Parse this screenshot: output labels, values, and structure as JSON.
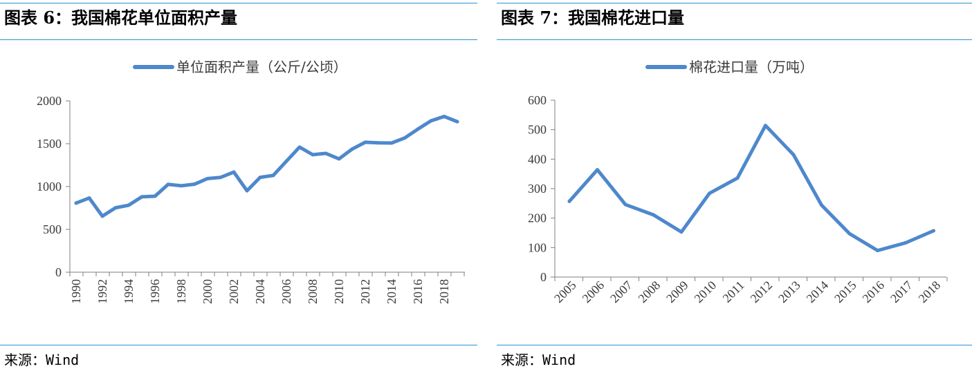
{
  "left_panel": {
    "title": "图表 6：我国棉花单位面积产量",
    "source": "来源：Wind"
  },
  "right_panel": {
    "title": "图表 7：我国棉花进口量",
    "source": "来源：Wind"
  },
  "colors": {
    "line": "#4e88cc",
    "rule": "#2b8fd0",
    "axis": "#7f7f7f"
  },
  "chart_data": [
    {
      "type": "line",
      "series": [
        {
          "name": "单位面积产量（公斤/公顷）",
          "values": [
            807,
            866,
            654,
            752,
            782,
            880,
            887,
            1025,
            1009,
            1027,
            1093,
            1107,
            1169,
            951,
            1107,
            1130,
            1296,
            1460,
            1372,
            1387,
            1323,
            1437,
            1517,
            1510,
            1508,
            1567,
            1670,
            1767,
            1818,
            1757
          ]
        }
      ],
      "categories": [
        "1990",
        "1991",
        "1992",
        "1993",
        "1994",
        "1995",
        "1996",
        "1997",
        "1998",
        "1999",
        "2000",
        "2001",
        "2002",
        "2003",
        "2004",
        "2005",
        "2006",
        "2007",
        "2008",
        "2009",
        "2010",
        "2011",
        "2012",
        "2013",
        "2014",
        "2015",
        "2016",
        "2017",
        "2018",
        "2019"
      ],
      "x_tick_labels": [
        "1990",
        "1992",
        "1994",
        "1996",
        "1998",
        "2000",
        "2002",
        "2004",
        "2006",
        "2008",
        "2010",
        "2012",
        "2014",
        "2016",
        "2018"
      ],
      "ylim": [
        0,
        2000
      ],
      "y_ticks": [
        0,
        500,
        1000,
        1500,
        2000
      ],
      "legend": "top-center",
      "grid": false
    },
    {
      "type": "line",
      "series": [
        {
          "name": "棉花进口量（万吨）",
          "values": [
            257,
            364,
            246,
            211,
            153,
            284,
            336,
            514,
            415,
            244,
            147,
            90,
            116,
            157
          ]
        }
      ],
      "categories": [
        "2005",
        "2006",
        "2007",
        "2008",
        "2009",
        "2010",
        "2011",
        "2012",
        "2013",
        "2014",
        "2015",
        "2016",
        "2017",
        "2018"
      ],
      "ylim": [
        0,
        600
      ],
      "y_ticks": [
        0,
        100,
        200,
        300,
        400,
        500,
        600
      ],
      "legend": "top-center",
      "grid": false
    }
  ]
}
